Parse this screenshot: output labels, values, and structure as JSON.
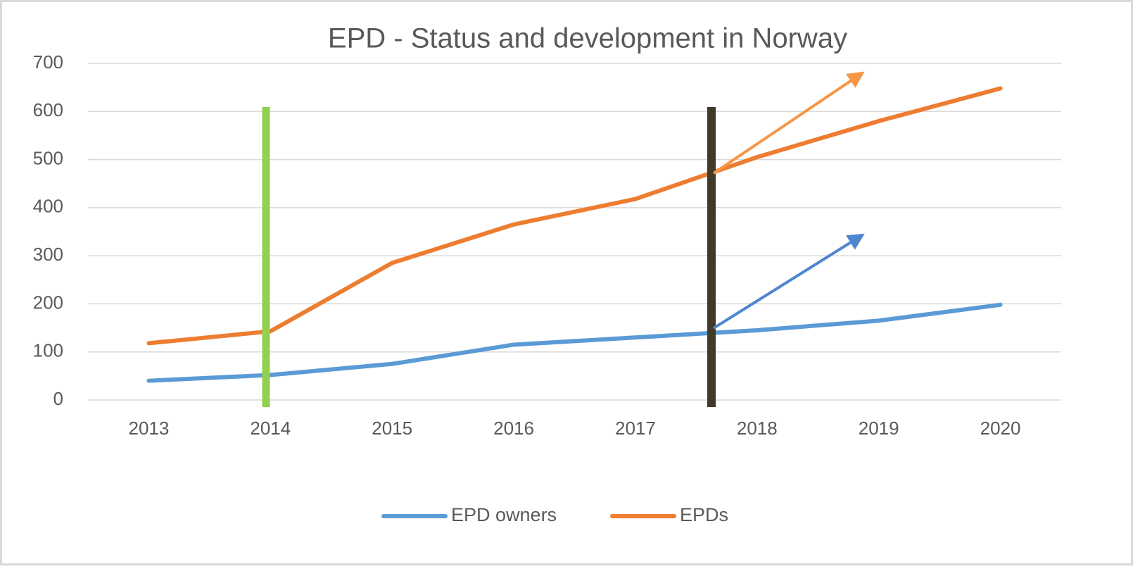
{
  "chart_data": {
    "type": "line",
    "title": "EPD - Status and development in Norway",
    "categories": [
      "2013",
      "2014",
      "2015",
      "2016",
      "2017",
      "2018",
      "2019",
      "2020"
    ],
    "series": [
      {
        "name": "EPD owners",
        "color": "#5b9bd5",
        "values": [
          40,
          52,
          75,
          115,
          130,
          145,
          165,
          198
        ]
      },
      {
        "name": "EPDs",
        "color": "#ed7d31",
        "values": [
          118,
          143,
          285,
          365,
          418,
          505,
          580,
          648
        ]
      }
    ],
    "ylim": [
      0,
      700
    ],
    "yticks": [
      0,
      100,
      200,
      300,
      400,
      500,
      600,
      700
    ],
    "grid": true,
    "legend": "bottom"
  }
}
